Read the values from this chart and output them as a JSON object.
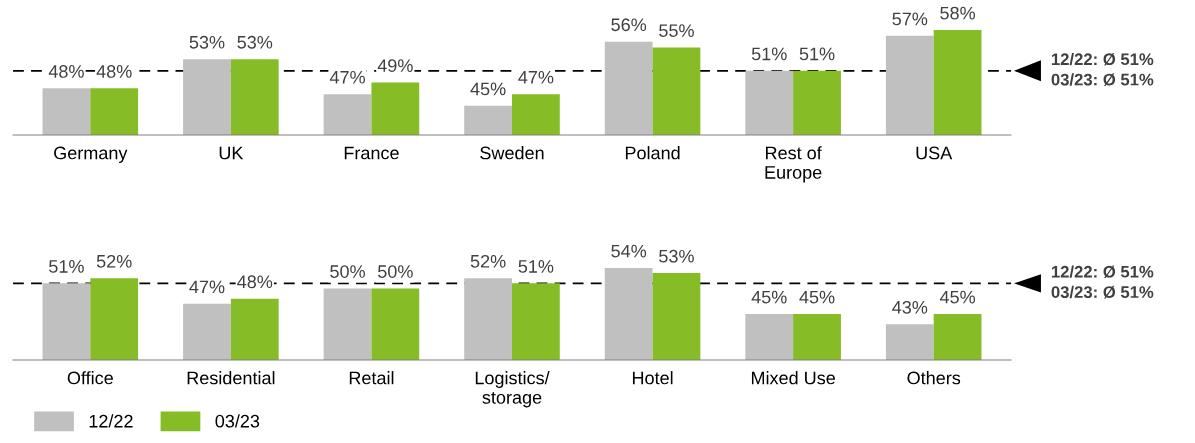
{
  "chart_data": [
    {
      "type": "bar",
      "categories": [
        "Germany",
        "UK",
        "France",
        "Sweden",
        "Poland",
        "Rest of\nEurope",
        "USA"
      ],
      "ylim": [
        40,
        58
      ],
      "tick_labels": "x",
      "grid": false,
      "series": [
        {
          "color": "#c0c0c0",
          "values": [
            48,
            53,
            47,
            45,
            56,
            51,
            57
          ],
          "value_labels": [
            "48%",
            "53%",
            "47%",
            "45%",
            "56%",
            "51%",
            "57%"
          ]
        },
        {
          "color": "#86bc25",
          "values": [
            48,
            53,
            49,
            47,
            55,
            51,
            58
          ],
          "value_labels": [
            "48%",
            "53%",
            "49%",
            "47%",
            "55%",
            "51%",
            "58%"
          ]
        }
      ],
      "ref_lines": [
        {
          "axis": "y",
          "value": 51,
          "label": "12/22: Ø 51%\n03/23: Ø 51%",
          "color": "#000000",
          "line_style": "dashed"
        }
      ]
    },
    {
      "type": "bar",
      "categories": [
        "Office",
        "Residential",
        "Retail",
        "Logistics/\nstorage",
        "Hotel",
        "Mixed Use",
        "Others"
      ],
      "ylim": [
        36,
        54
      ],
      "tick_labels": "x",
      "grid": false,
      "legend": "bottom left",
      "series": [
        {
          "name": "12/22",
          "color": "#c0c0c0",
          "values": [
            51,
            47,
            50,
            52,
            54,
            45,
            43
          ],
          "value_labels": [
            "51%",
            "47%",
            "50%",
            "52%",
            "54%",
            "45%",
            "43%"
          ]
        },
        {
          "name": "03/23",
          "color": "#86bc25",
          "values": [
            52,
            48,
            50,
            51,
            53,
            45,
            45
          ],
          "value_labels": [
            "52%",
            "48%",
            "50%",
            "51%",
            "53%",
            "45%",
            "45%"
          ]
        }
      ],
      "ref_lines": [
        {
          "axis": "y",
          "value": 51,
          "label": "12/22: Ø 51%\n03/23: Ø 51%",
          "color": "#000000",
          "line_style": "dashed"
        }
      ]
    }
  ]
}
